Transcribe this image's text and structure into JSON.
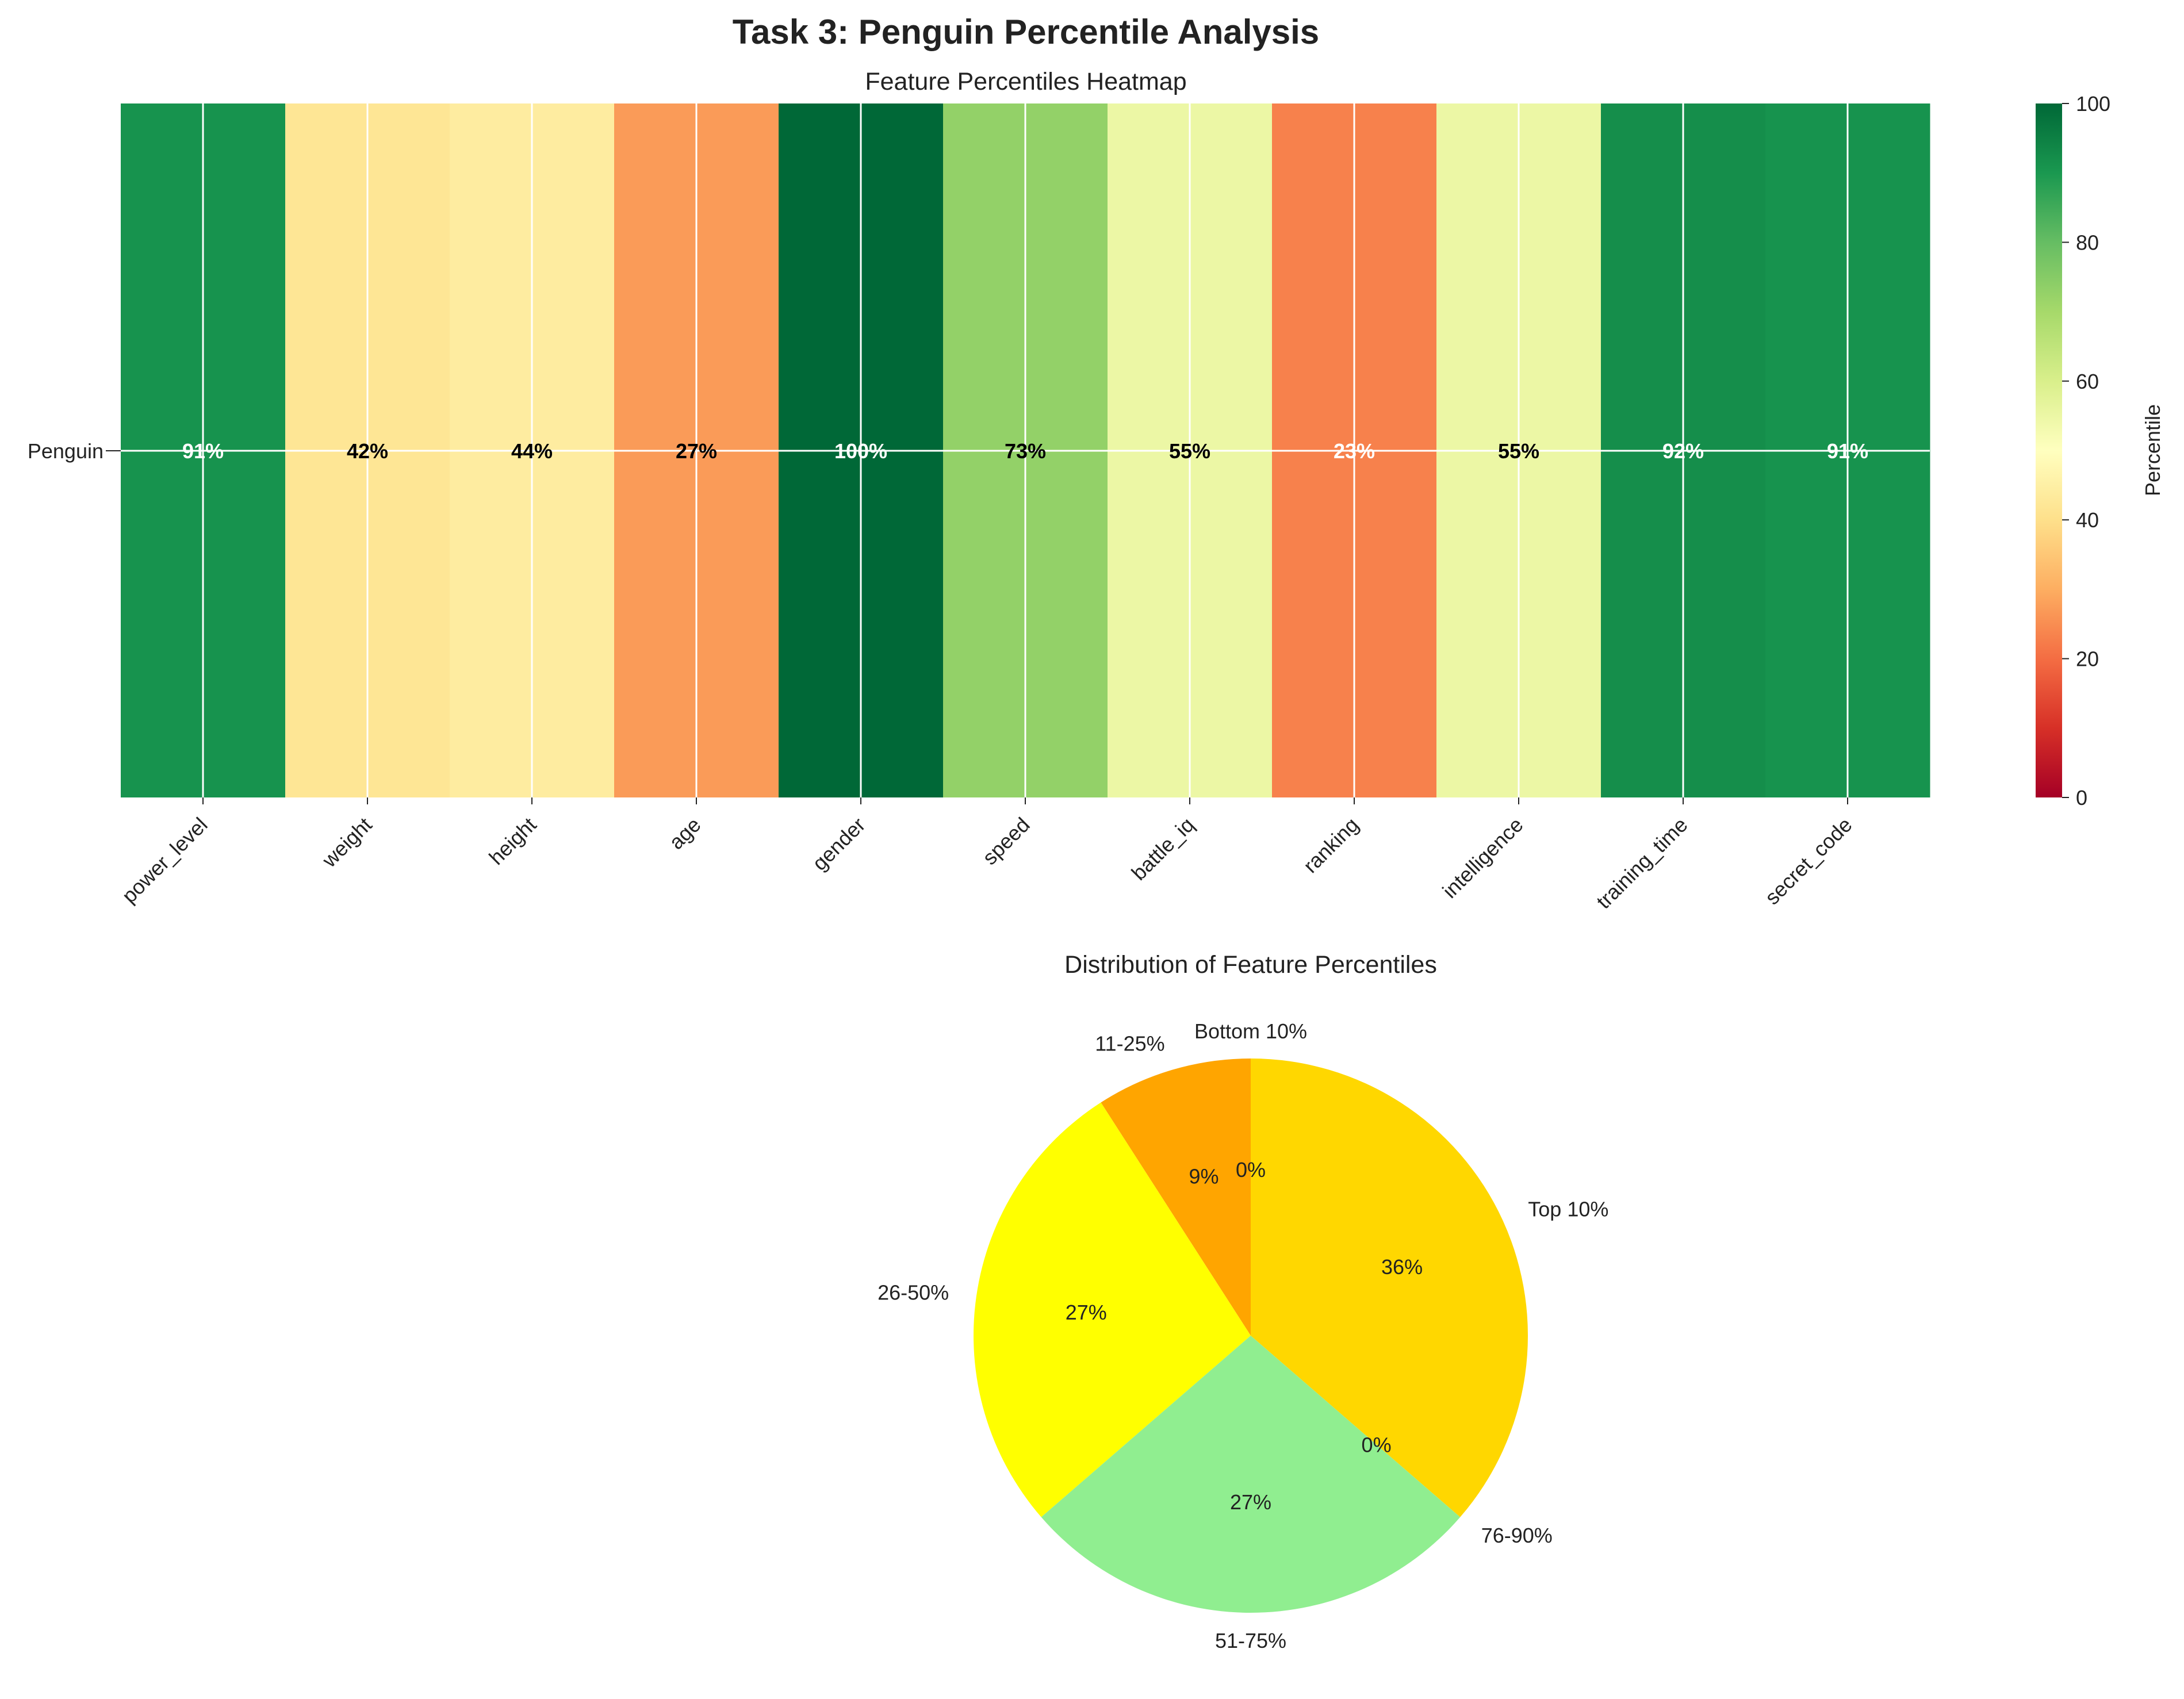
{
  "figure_title": "Task 3: Penguin Percentile Analysis",
  "colors": {
    "heat_low": "#a50026",
    "heat_mid": "#ffffbf",
    "heat_high": "#006837",
    "pie_bottom_10": "#ff0000",
    "pie_11_25": "#ffa500",
    "pie_26_50": "#ffff00",
    "pie_51_75": "#90ee90",
    "pie_76_90": "#008000",
    "pie_top_10": "#ffd700"
  },
  "chart_data": [
    {
      "type": "heatmap",
      "title": "Feature Percentiles Heatmap",
      "row_labels": [
        "Penguin"
      ],
      "columns": [
        "power_level",
        "weight",
        "height",
        "age",
        "gender",
        "speed",
        "battle_iq",
        "ranking",
        "intelligence",
        "training_time",
        "secret_code"
      ],
      "values": [
        [
          91,
          42,
          44,
          27,
          100,
          73,
          55,
          23,
          55,
          92,
          91
        ]
      ],
      "cell_labels": [
        "91%",
        "42%",
        "44%",
        "27%",
        "100%",
        "73%",
        "55%",
        "23%",
        "55%",
        "92%",
        "91%"
      ],
      "colorbar": {
        "label": "Percentile",
        "range": [
          0,
          100
        ],
        "ticks": [
          "0",
          "20",
          "40",
          "60",
          "80",
          "100"
        ],
        "colormap": "RdYlGn"
      },
      "grid": true
    },
    {
      "type": "pie",
      "title": "Distribution of Feature Percentiles",
      "labels": [
        "Bottom 10%",
        "11-25%",
        "26-50%",
        "51-75%",
        "76-90%",
        "Top 10%"
      ],
      "values": [
        0,
        9,
        27,
        27,
        0,
        36
      ],
      "pct_labels": [
        "0%",
        "9%",
        "27%",
        "27%",
        "0%",
        "36%"
      ],
      "colors": [
        "#ff0000",
        "#ffa500",
        "#ffff00",
        "#90ee90",
        "#008000",
        "#ffd700"
      ],
      "start_angle": 90,
      "direction": "counterclockwise"
    }
  ]
}
